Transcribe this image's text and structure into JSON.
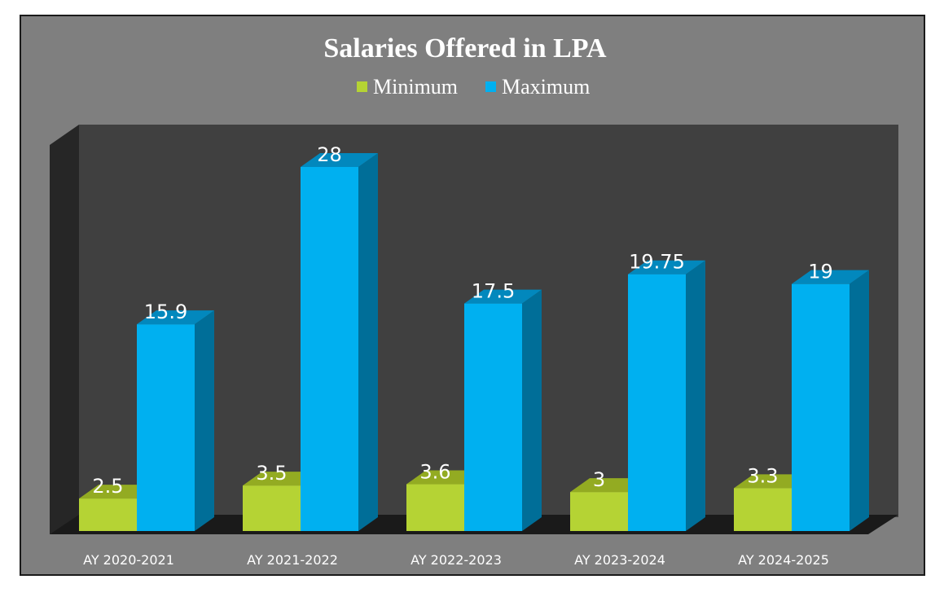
{
  "chart_data": {
    "type": "bar",
    "title": "Salaries Offered in LPA",
    "categories": [
      "AY 2020-2021",
      "AY 2021-2022",
      "AY 2022-2023",
      "AY 2023-2024",
      "AY 2024-2025"
    ],
    "series": [
      {
        "name": "Minimum",
        "values": [
          2.5,
          3.5,
          3.6,
          3,
          3.3
        ],
        "labels": [
          "2.5",
          "3.5",
          "3.6",
          "3",
          "3.3"
        ],
        "color": "#b5d334",
        "side_color": "#7f9a14",
        "top_color": "#93ab22"
      },
      {
        "name": "Maximum",
        "values": [
          15.9,
          28,
          17.5,
          19.75,
          19
        ],
        "labels": [
          "15.9",
          "28",
          "17.5",
          "19.75",
          "19"
        ],
        "color": "#00b0f0",
        "side_color": "#006e98",
        "top_color": "#0288bd"
      }
    ],
    "ylim": [
      0,
      30
    ],
    "legend_position": "top",
    "grid": false,
    "style_3d": true,
    "colors": {
      "background": "#7f7f7f",
      "back_wall": "#404040",
      "side_wall": "#262626",
      "floor": "#1a1a1a",
      "text": "#ffffff"
    }
  }
}
